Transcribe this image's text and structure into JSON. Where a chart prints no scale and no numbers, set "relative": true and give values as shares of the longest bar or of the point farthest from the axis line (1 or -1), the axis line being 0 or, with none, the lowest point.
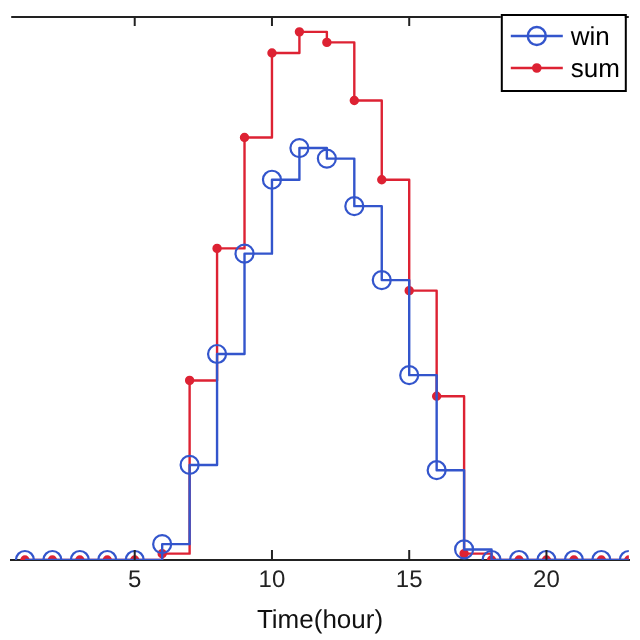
{
  "chart_data": {
    "type": "step",
    "xlabel": "Time(hour)",
    "relative": true,
    "xlim": [
      0.5,
      23
    ],
    "xticks": [
      5,
      10,
      15,
      20
    ],
    "grid": false,
    "legend": "top right",
    "x": [
      1,
      2,
      3,
      4,
      5,
      6,
      7,
      8,
      9,
      10,
      11,
      12,
      13,
      14,
      15,
      16,
      17,
      18,
      19,
      20,
      21,
      22,
      23
    ],
    "series": [
      {
        "name": "win",
        "color": "#3355cc",
        "marker": "circle",
        "values": [
          0,
          0,
          0,
          0,
          0,
          0.03,
          0.18,
          0.39,
          0.58,
          0.72,
          0.78,
          0.76,
          0.67,
          0.53,
          0.35,
          0.17,
          0.02,
          0,
          0,
          0,
          0,
          0,
          0
        ]
      },
      {
        "name": "sum",
        "color": "#dd2233",
        "marker": "circle",
        "values": [
          0,
          0,
          0,
          0,
          0,
          0.012,
          0.34,
          0.59,
          0.8,
          0.96,
          1,
          0.98,
          0.87,
          0.72,
          0.51,
          0.31,
          0.012,
          0,
          0,
          0,
          0,
          0,
          0
        ]
      }
    ]
  }
}
